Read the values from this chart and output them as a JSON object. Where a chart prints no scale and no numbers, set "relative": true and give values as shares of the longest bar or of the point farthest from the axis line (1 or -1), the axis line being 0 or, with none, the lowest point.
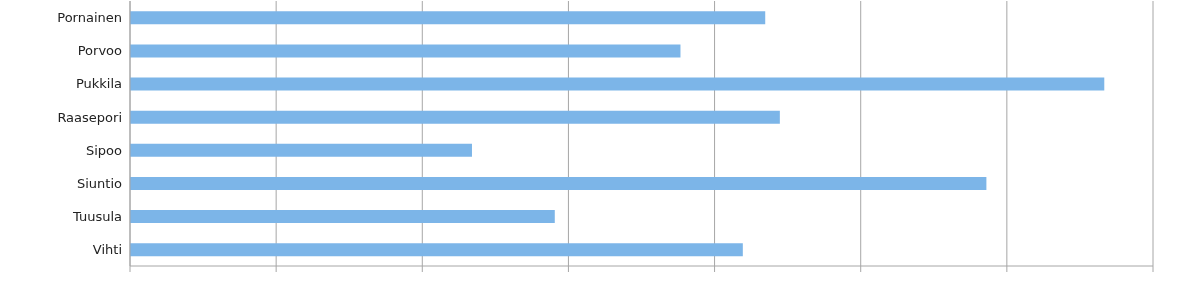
{
  "chart_data": {
    "type": "bar",
    "orientation": "horizontal",
    "relative": true,
    "categories": [
      "Pornainen",
      "Porvoo",
      "Pukkila",
      "Raasepori",
      "Sipoo",
      "Siuntio",
      "Tuusula",
      "Vihti"
    ],
    "values": [
      0.652,
      0.565,
      1,
      0.667,
      0.351,
      0.879,
      0.436,
      0.629
    ],
    "color": "#7cb5e8",
    "grid": "x"
  }
}
